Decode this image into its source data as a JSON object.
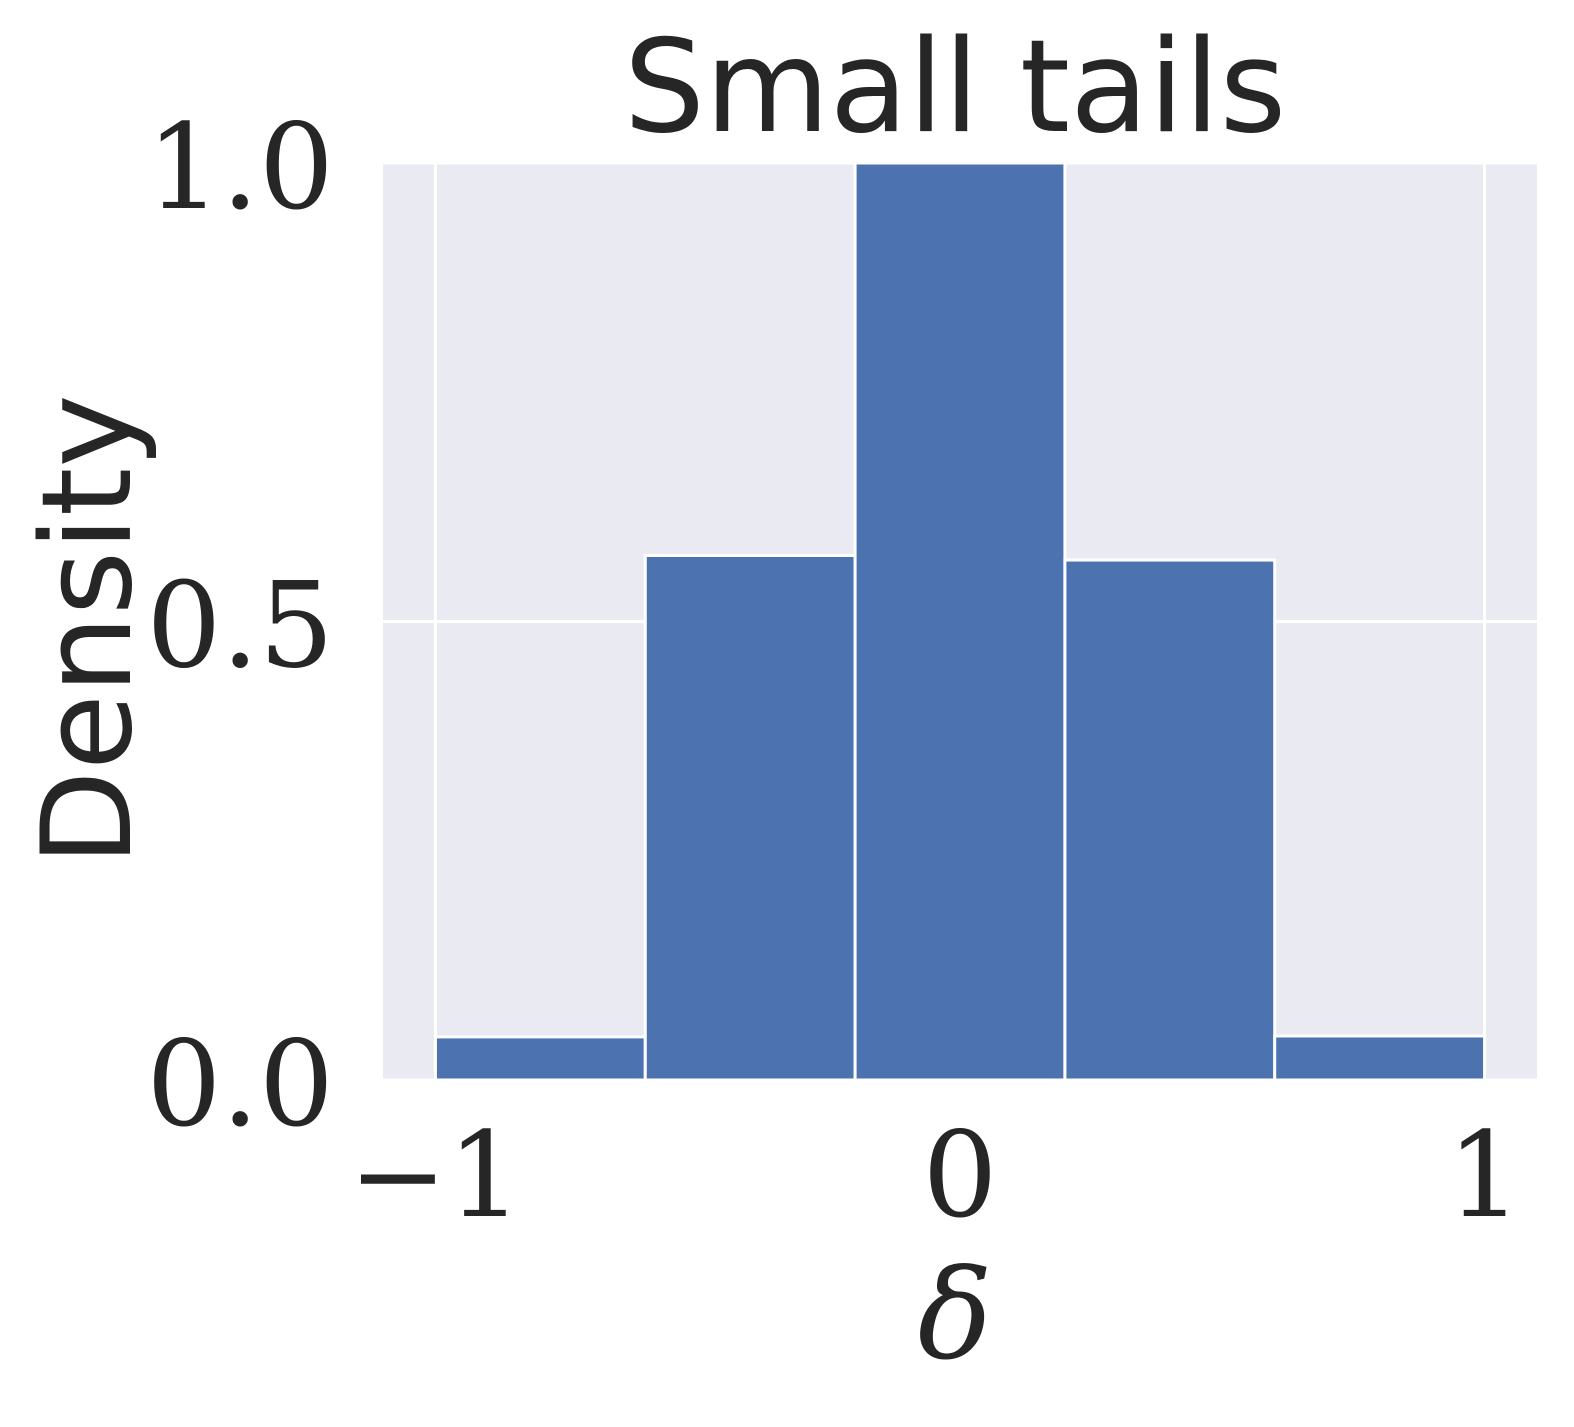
{
  "chart_data": {
    "type": "bar",
    "title": "Small tails",
    "xlabel": "δ",
    "ylabel": "Density",
    "bin_edges": [
      -1,
      -0.6,
      -0.2,
      0.2,
      0.6,
      1
    ],
    "values": [
      0.047,
      0.572,
      1.0,
      0.567,
      0.048
    ],
    "xlim": [
      -1.1,
      1.1
    ],
    "ylim": [
      0,
      1.0
    ],
    "x_ticks": [
      -1,
      0,
      1
    ],
    "x_tick_labels": [
      "−1",
      "0",
      "1"
    ],
    "y_ticks": [
      0,
      0.5,
      1.0
    ],
    "y_tick_labels": [
      "0.0",
      "0.5",
      "1.0"
    ],
    "grid": true,
    "colors": {
      "bar": "#4c72b0",
      "plot_background": "#eaeaf2",
      "grid": "#ffffff",
      "text": "#262626"
    }
  }
}
